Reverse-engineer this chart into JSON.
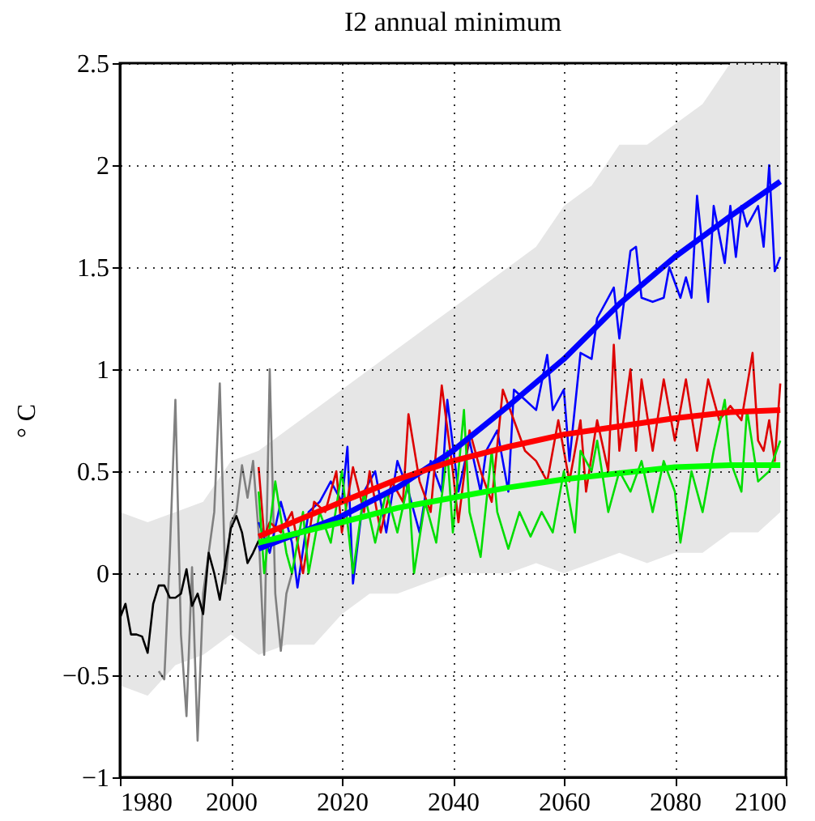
{
  "chart_data": {
    "type": "line",
    "title": "I2 annual minimum",
    "ylabel": "° C",
    "xlim": [
      1980,
      2100
    ],
    "xticks": [
      1980,
      2000,
      2020,
      2040,
      2060,
      2080,
      2100
    ],
    "ylim": [
      -1,
      2.5
    ],
    "yticks": [
      {
        "value": -1,
        "label": "−1"
      },
      {
        "value": -0.5,
        "label": "−0.5"
      },
      0,
      0.5,
      1,
      1.5,
      2,
      2.5
    ],
    "line_style": "solid",
    "grid": true,
    "series": [
      {
        "color": "#e6e6e6",
        "x": [
          1980,
          1985,
          1990,
          1995,
          2000,
          2005,
          2010,
          2015,
          2020,
          2025,
          2030,
          2035,
          2040,
          2045,
          2050,
          2055,
          2060,
          2065,
          2070,
          2075,
          2080,
          2085,
          2090,
          2095,
          2099
        ],
        "values": [
          null,
          null,
          null,
          null,
          null,
          null,
          null,
          null,
          null,
          null,
          null,
          null,
          null,
          null,
          null,
          null,
          null,
          null,
          null,
          null,
          null,
          null,
          null,
          null,
          null
        ],
        "lower": [
          -0.55,
          -0.6,
          -0.45,
          -0.4,
          -0.3,
          -0.4,
          -0.35,
          -0.35,
          -0.2,
          -0.1,
          -0.1,
          -0.05,
          0.0,
          0.0,
          0.0,
          0.05,
          0.0,
          0.05,
          0.1,
          0.05,
          0.1,
          0.1,
          0.2,
          0.2,
          0.3
        ],
        "upper": [
          0.3,
          0.25,
          0.3,
          0.35,
          0.55,
          0.6,
          0.7,
          0.8,
          0.9,
          1.0,
          1.1,
          1.2,
          1.3,
          1.4,
          1.5,
          1.6,
          1.8,
          1.9,
          2.1,
          2.1,
          2.2,
          2.3,
          2.5,
          2.5,
          2.5
        ]
      },
      {
        "color": "#808080",
        "x": [
          1987,
          1988,
          1989,
          1990,
          1991,
          1992,
          1993,
          1994,
          1995,
          1996,
          1997,
          1998,
          1999,
          2000,
          2001,
          2002,
          2003,
          2004,
          2005,
          2006,
          2007,
          2008,
          2009,
          2010,
          2011
        ],
        "values": [
          -0.48,
          -0.52,
          0.1,
          0.85,
          -0.3,
          -0.7,
          0.03,
          -0.82,
          -0.1,
          0.1,
          0.3,
          0.93,
          -0.05,
          0.25,
          0.3,
          0.53,
          0.37,
          0.55,
          0.2,
          -0.4,
          1.0,
          -0.1,
          -0.38,
          -0.1,
          0.0
        ]
      },
      {
        "color": "#000000",
        "x": [
          1980,
          1981,
          1982,
          1983,
          1984,
          1985,
          1986,
          1987,
          1988,
          1989,
          1990,
          1991,
          1992,
          1993,
          1994,
          1995,
          1996,
          1997,
          1998,
          1999,
          2000,
          2001,
          2002,
          2003,
          2004,
          2005
        ],
        "values": [
          -0.22,
          -0.15,
          -0.3,
          -0.3,
          -0.31,
          -0.39,
          -0.15,
          -0.06,
          -0.06,
          -0.12,
          -0.12,
          -0.1,
          0.02,
          -0.16,
          -0.1,
          -0.2,
          0.1,
          0.0,
          -0.13,
          0.05,
          0.22,
          0.28,
          0.2,
          0.05,
          0.1,
          0.16
        ]
      },
      {
        "color": "#0000ff",
        "x": [
          2005,
          2007,
          2009,
          2011,
          2012,
          2014,
          2016,
          2018,
          2020,
          2021,
          2022,
          2024,
          2026,
          2028,
          2030,
          2032,
          2034,
          2036,
          2038,
          2039,
          2041,
          2043,
          2045,
          2046,
          2048,
          2050,
          2051,
          2053,
          2055,
          2057,
          2058,
          2060,
          2061,
          2063,
          2065,
          2066,
          2068,
          2069,
          2070,
          2072,
          2073,
          2074,
          2076,
          2078,
          2079,
          2081,
          2082,
          2083,
          2084,
          2086,
          2087,
          2089,
          2090,
          2091,
          2092,
          2093,
          2095,
          2096,
          2097,
          2098,
          2099
        ],
        "values": [
          0.25,
          0.1,
          0.35,
          0.15,
          -0.07,
          0.3,
          0.35,
          0.45,
          0.35,
          0.62,
          -0.05,
          0.4,
          0.5,
          0.2,
          0.55,
          0.4,
          0.2,
          0.55,
          0.4,
          0.85,
          0.4,
          0.65,
          0.4,
          0.6,
          0.7,
          0.4,
          0.9,
          0.85,
          0.8,
          1.07,
          0.8,
          0.9,
          0.55,
          1.08,
          1.05,
          1.25,
          1.35,
          1.4,
          1.15,
          1.58,
          1.6,
          1.35,
          1.33,
          1.35,
          1.5,
          1.35,
          1.45,
          1.35,
          1.85,
          1.33,
          1.8,
          1.52,
          1.8,
          1.55,
          1.8,
          1.7,
          1.8,
          1.6,
          2.0,
          1.48,
          1.55
        ]
      },
      {
        "color": "#dd0000",
        "x": [
          2005,
          2006,
          2007,
          2009,
          2011,
          2013,
          2015,
          2017,
          2019,
          2020,
          2022,
          2024,
          2025,
          2027,
          2029,
          2031,
          2032,
          2034,
          2036,
          2038,
          2040,
          2041,
          2043,
          2045,
          2047,
          2049,
          2051,
          2053,
          2055,
          2057,
          2059,
          2061,
          2063,
          2064,
          2066,
          2068,
          2069,
          2070,
          2072,
          2073,
          2074,
          2076,
          2078,
          2080,
          2082,
          2084,
          2086,
          2088,
          2090,
          2092,
          2094,
          2095,
          2096,
          2097,
          2098,
          2099
        ],
        "values": [
          0.52,
          0.18,
          0.25,
          0.2,
          0.3,
          0.0,
          0.35,
          0.3,
          0.5,
          0.2,
          0.52,
          0.3,
          0.5,
          0.2,
          0.45,
          0.35,
          0.78,
          0.45,
          0.3,
          0.92,
          0.5,
          0.25,
          0.7,
          0.5,
          0.35,
          0.9,
          0.75,
          0.6,
          0.55,
          0.45,
          0.75,
          0.45,
          0.75,
          0.4,
          0.75,
          0.5,
          1.12,
          0.6,
          1.0,
          0.6,
          0.95,
          0.6,
          0.95,
          0.65,
          0.95,
          0.6,
          0.95,
          0.75,
          0.82,
          0.75,
          1.08,
          0.65,
          0.6,
          0.75,
          0.55,
          0.93
        ]
      },
      {
        "color": "#00dd00",
        "x": [
          2005,
          2006,
          2008,
          2010,
          2011,
          2013,
          2014,
          2016,
          2018,
          2020,
          2022,
          2024,
          2026,
          2028,
          2030,
          2032,
          2033,
          2035,
          2037,
          2039,
          2040,
          2042,
          2043,
          2045,
          2047,
          2048,
          2050,
          2052,
          2054,
          2056,
          2058,
          2060,
          2062,
          2063,
          2065,
          2066,
          2068,
          2070,
          2072,
          2074,
          2076,
          2078,
          2080,
          2081,
          2083,
          2085,
          2087,
          2089,
          2090,
          2092,
          2093,
          2095,
          2097,
          2099
        ],
        "values": [
          0.4,
          0.0,
          0.45,
          0.1,
          0.0,
          0.3,
          0.0,
          0.3,
          0.15,
          0.5,
          0.0,
          0.4,
          0.15,
          0.4,
          0.2,
          0.45,
          0.0,
          0.35,
          0.15,
          0.6,
          0.2,
          0.8,
          0.3,
          0.08,
          0.6,
          0.3,
          0.12,
          0.3,
          0.18,
          0.3,
          0.2,
          0.5,
          0.2,
          0.6,
          0.5,
          0.65,
          0.3,
          0.5,
          0.4,
          0.55,
          0.3,
          0.55,
          0.4,
          0.15,
          0.5,
          0.3,
          0.6,
          0.85,
          0.55,
          0.4,
          0.8,
          0.45,
          0.5,
          0.65
        ]
      },
      {
        "color": "#0000ff",
        "x": [
          2005,
          2020,
          2030,
          2040,
          2050,
          2060,
          2070,
          2080,
          2090,
          2099
        ],
        "values": [
          0.12,
          0.28,
          0.42,
          0.6,
          0.82,
          1.05,
          1.32,
          1.55,
          1.75,
          1.92
        ]
      },
      {
        "color": "#ff0000",
        "x": [
          2005,
          2020,
          2030,
          2040,
          2050,
          2060,
          2070,
          2080,
          2090,
          2099
        ],
        "values": [
          0.18,
          0.35,
          0.46,
          0.55,
          0.62,
          0.68,
          0.72,
          0.76,
          0.79,
          0.8
        ]
      },
      {
        "color": "#00ff00",
        "x": [
          2005,
          2020,
          2030,
          2040,
          2050,
          2060,
          2070,
          2080,
          2090,
          2099
        ],
        "values": [
          0.15,
          0.25,
          0.32,
          0.37,
          0.42,
          0.46,
          0.49,
          0.52,
          0.53,
          0.53
        ]
      }
    ]
  }
}
